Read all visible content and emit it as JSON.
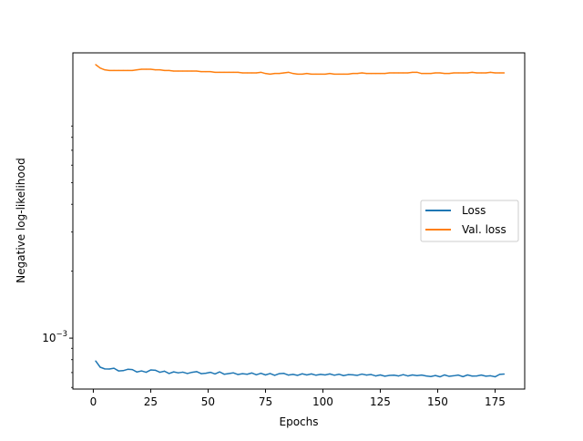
{
  "chart_data": {
    "type": "line",
    "title": "",
    "xlabel": "Epochs",
    "ylabel": "Negative log-likelihood",
    "xlim": [
      -8.9,
      187.9
    ],
    "ylim": [
      0.00059,
      0.0192
    ],
    "yscale": "log",
    "grid": false,
    "legend_position": "center-right",
    "x_ticks": [
      0,
      25,
      50,
      75,
      100,
      125,
      150,
      175
    ],
    "x_tick_labels": [
      "0",
      "25",
      "50",
      "75",
      "100",
      "125",
      "150",
      "175"
    ],
    "y_major_ticks": [
      0.001
    ],
    "y_major_tick_labels": [
      {
        "base": "10",
        "exp": "−3"
      }
    ],
    "y_minor_ticks": [
      0.0006,
      0.0007,
      0.0008,
      0.0009,
      0.002,
      0.003,
      0.004,
      0.005,
      0.006,
      0.007,
      0.008,
      0.009
    ],
    "series": [
      {
        "name": "Loss",
        "color": "#1f77b4",
        "x": [
          1,
          3,
          5,
          7,
          9,
          11,
          13,
          15,
          17,
          19,
          21,
          23,
          25,
          27,
          29,
          31,
          33,
          35,
          37,
          39,
          41,
          43,
          45,
          47,
          49,
          51,
          53,
          55,
          57,
          59,
          61,
          63,
          65,
          67,
          69,
          71,
          73,
          75,
          77,
          79,
          81,
          83,
          85,
          87,
          89,
          91,
          93,
          95,
          97,
          99,
          101,
          103,
          105,
          107,
          109,
          111,
          113,
          115,
          117,
          119,
          121,
          123,
          125,
          127,
          129,
          131,
          133,
          135,
          137,
          139,
          141,
          143,
          145,
          147,
          149,
          151,
          153,
          155,
          157,
          159,
          161,
          163,
          165,
          167,
          169,
          171,
          173,
          175,
          177,
          179
        ],
        "values": [
          0.00079,
          0.00074,
          0.000727,
          0.000726,
          0.000732,
          0.000712,
          0.000714,
          0.000724,
          0.000722,
          0.000704,
          0.000712,
          0.000702,
          0.000719,
          0.000717,
          0.000702,
          0.00071,
          0.000693,
          0.000705,
          0.000698,
          0.000703,
          0.000693,
          0.000702,
          0.000707,
          0.000692,
          0.000695,
          0.000702,
          0.00069,
          0.000705,
          0.000688,
          0.000693,
          0.000698,
          0.000686,
          0.000692,
          0.000688,
          0.000697,
          0.000684,
          0.000695,
          0.000683,
          0.000693,
          0.00068,
          0.000692,
          0.000694,
          0.000682,
          0.000687,
          0.00068,
          0.000691,
          0.000683,
          0.00069,
          0.000681,
          0.000687,
          0.000683,
          0.00069,
          0.000681,
          0.000688,
          0.000678,
          0.000685,
          0.000684,
          0.00068,
          0.000689,
          0.000682,
          0.000686,
          0.000676,
          0.000683,
          0.000674,
          0.00068,
          0.000681,
          0.000676,
          0.000685,
          0.000676,
          0.000683,
          0.000678,
          0.000682,
          0.000676,
          0.000672,
          0.000679,
          0.00067,
          0.000683,
          0.000673,
          0.000677,
          0.000682,
          0.000671,
          0.000683,
          0.000675,
          0.000676,
          0.000682,
          0.000674,
          0.000677,
          0.00067,
          0.000687,
          0.000689
        ]
      },
      {
        "name": "Val. loss",
        "color": "#ff7f0e",
        "x": [
          1,
          3,
          5,
          7,
          9,
          11,
          13,
          15,
          17,
          19,
          21,
          23,
          25,
          27,
          29,
          31,
          33,
          35,
          37,
          39,
          41,
          43,
          45,
          47,
          49,
          51,
          53,
          55,
          57,
          59,
          61,
          63,
          65,
          67,
          69,
          71,
          73,
          75,
          77,
          79,
          81,
          83,
          85,
          87,
          89,
          91,
          93,
          95,
          97,
          99,
          101,
          103,
          105,
          107,
          109,
          111,
          113,
          115,
          117,
          119,
          121,
          123,
          125,
          127,
          129,
          131,
          133,
          135,
          137,
          139,
          141,
          143,
          145,
          147,
          149,
          151,
          153,
          155,
          157,
          159,
          161,
          163,
          165,
          167,
          169,
          171,
          173,
          175,
          177,
          179
        ],
        "values": [
          0.017,
          0.0164,
          0.0161,
          0.016,
          0.016,
          0.016,
          0.016,
          0.016,
          0.016,
          0.0161,
          0.0162,
          0.0162,
          0.0162,
          0.0161,
          0.0161,
          0.016,
          0.016,
          0.0159,
          0.0159,
          0.0159,
          0.0159,
          0.0159,
          0.0159,
          0.0158,
          0.0158,
          0.0158,
          0.0157,
          0.0157,
          0.0157,
          0.0157,
          0.0157,
          0.0157,
          0.0156,
          0.0156,
          0.0156,
          0.0156,
          0.0157,
          0.0155,
          0.0154,
          0.0155,
          0.0155,
          0.0156,
          0.0157,
          0.0155,
          0.0154,
          0.0154,
          0.0155,
          0.0154,
          0.0154,
          0.0154,
          0.0154,
          0.0155,
          0.0154,
          0.0154,
          0.0154,
          0.0154,
          0.0155,
          0.0155,
          0.0156,
          0.0155,
          0.0155,
          0.0155,
          0.0155,
          0.0155,
          0.0156,
          0.0156,
          0.0156,
          0.0156,
          0.0156,
          0.0157,
          0.0157,
          0.0155,
          0.0155,
          0.0155,
          0.0156,
          0.0156,
          0.0155,
          0.0155,
          0.0156,
          0.0156,
          0.0156,
          0.0156,
          0.0157,
          0.0156,
          0.0156,
          0.0156,
          0.0157,
          0.0156,
          0.0156,
          0.0156
        ]
      }
    ]
  }
}
